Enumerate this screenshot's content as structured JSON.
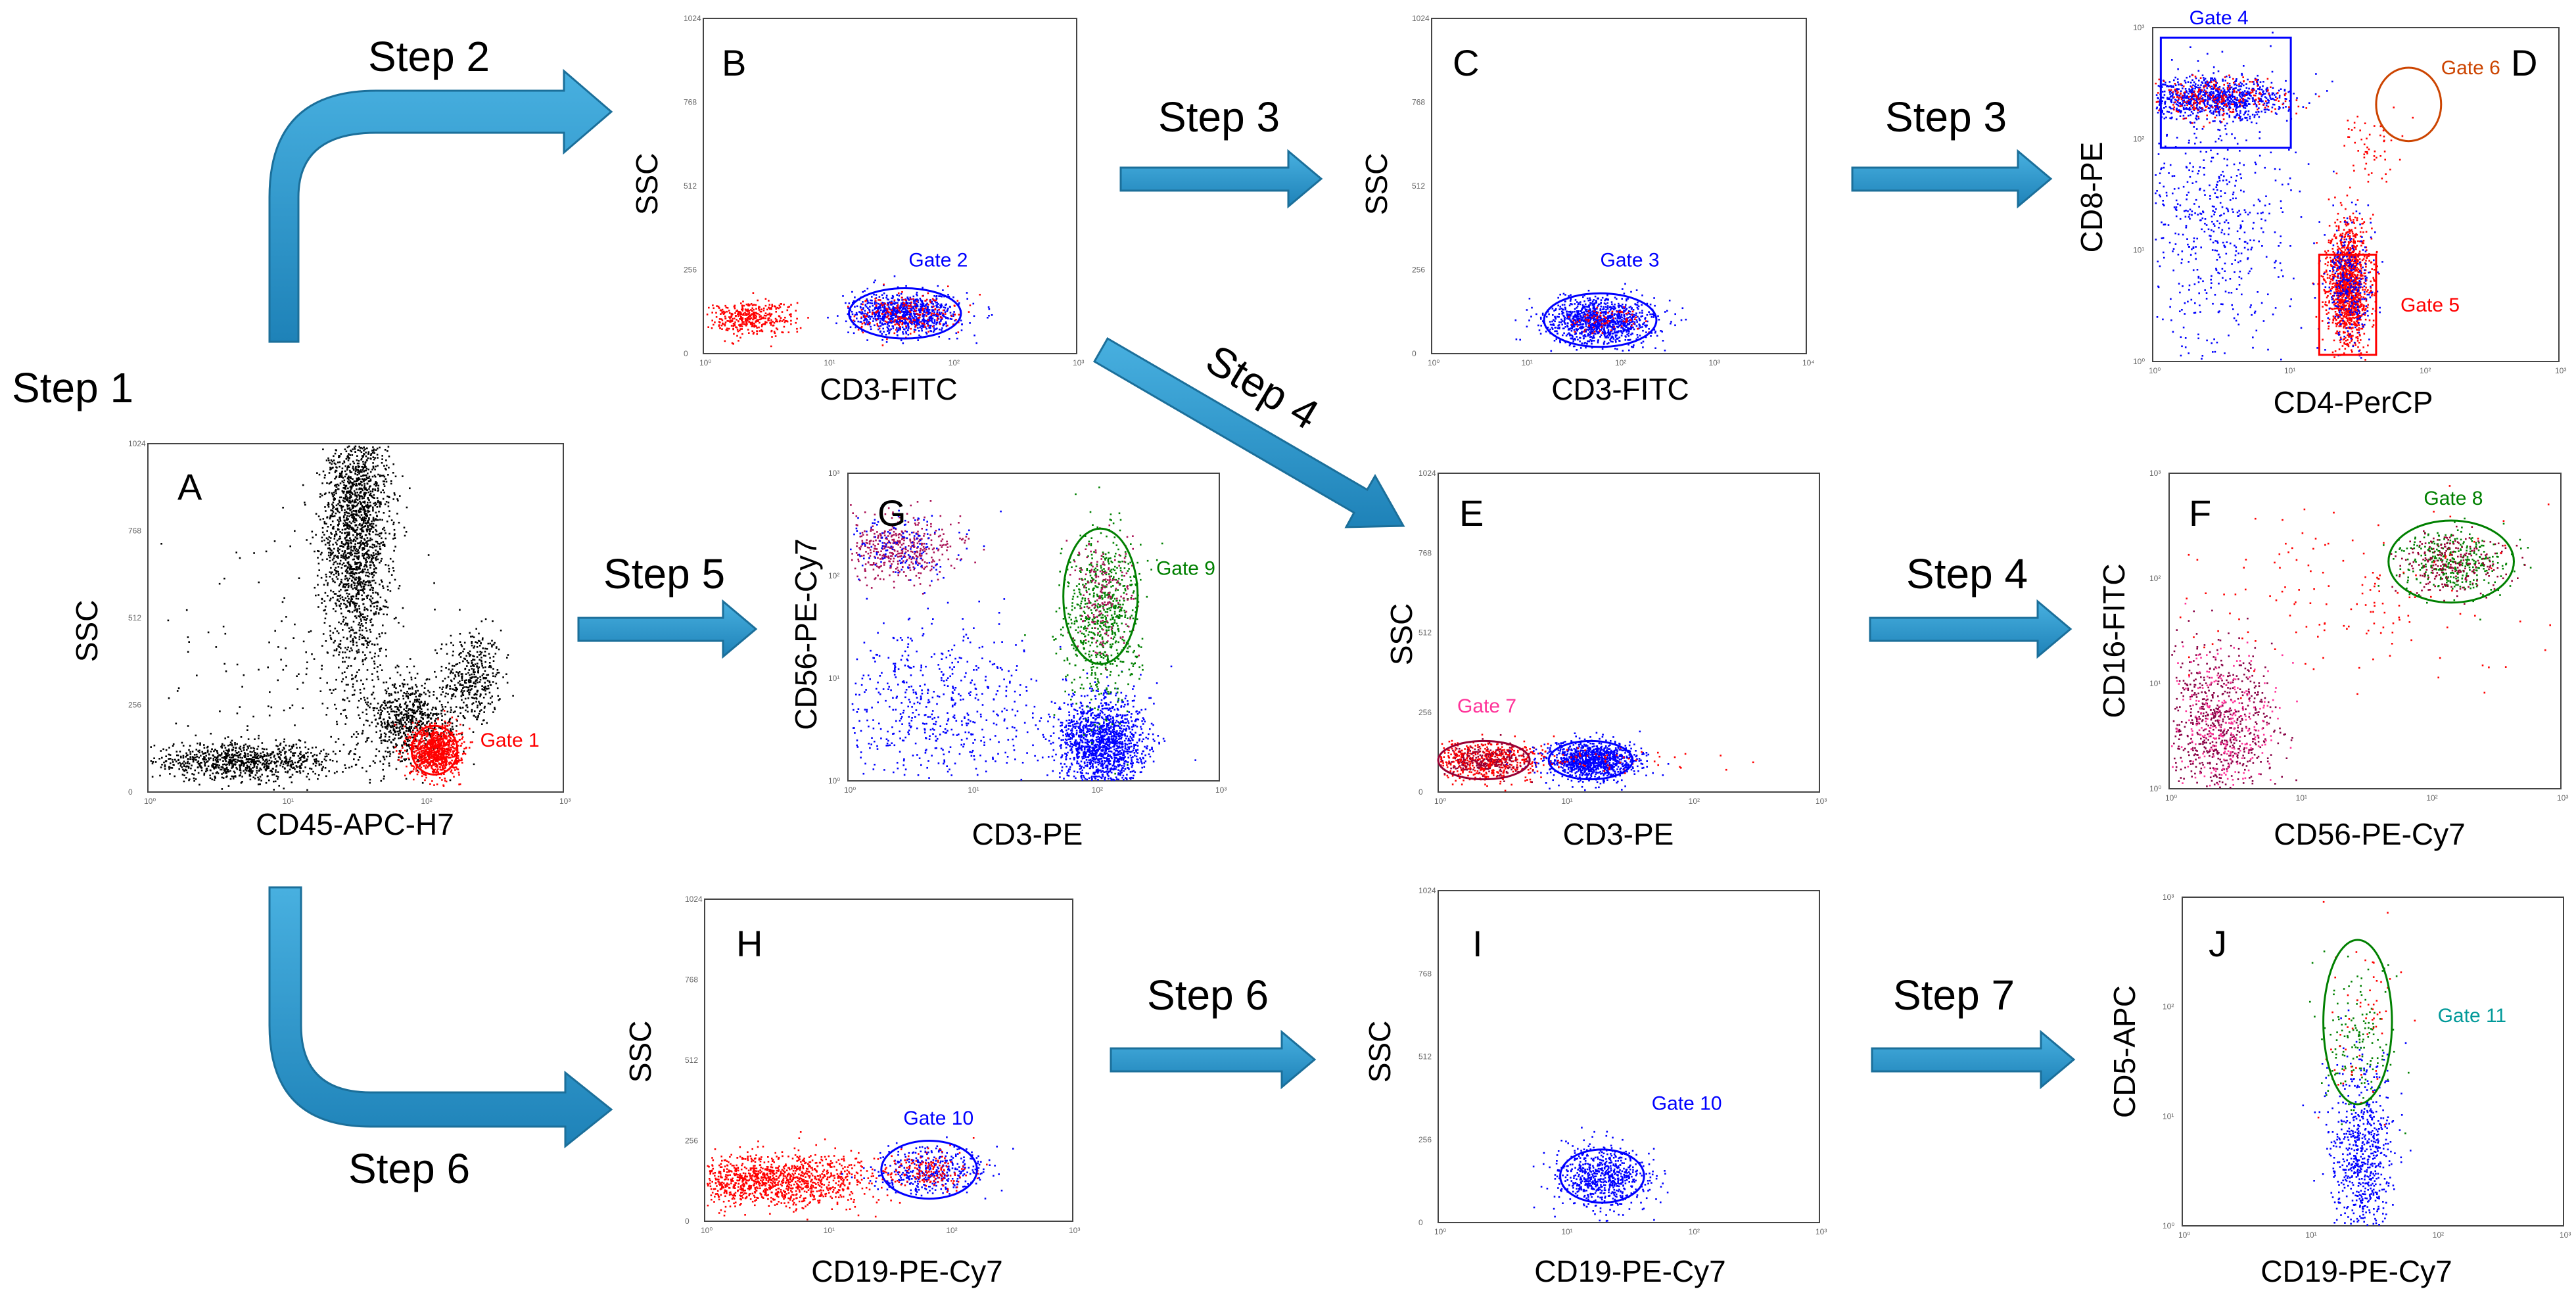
{
  "colors": {
    "arrow": "#2b93c8",
    "arrow_edge": "#1b6f9a",
    "red": "#ff0000",
    "blue": "#0000ff",
    "green": "#008000",
    "pink": "#ff3399",
    "orange": "#cc4400",
    "teal": "#009999",
    "black": "#000000"
  },
  "arrows": [
    {
      "label": "Step 1"
    },
    {
      "label": "Step 2"
    },
    {
      "label": "Step 3"
    },
    {
      "label": "Step 3"
    },
    {
      "label": "Step 4"
    },
    {
      "label": "Step 4"
    },
    {
      "label": "Step 5"
    },
    {
      "label": "Step 6"
    },
    {
      "label": "Step 6"
    },
    {
      "label": "Step 7"
    }
  ],
  "panels": [
    {
      "letter": "A",
      "xlabel": "CD45-APC-H7",
      "ylabel": "SSC",
      "yticks": [
        "1024",
        "768",
        "512",
        "256",
        "0"
      ],
      "xticks": [
        "10⁰",
        "10¹",
        "10²",
        "10³"
      ],
      "gates": [
        {
          "label": "Gate 1",
          "color": "#ff0000"
        }
      ]
    },
    {
      "letter": "B",
      "xlabel": "CD3-FITC",
      "ylabel": "SSC",
      "yticks": [
        "1024",
        "768",
        "512",
        "256",
        "0"
      ],
      "xticks": [
        "10⁰",
        "10¹",
        "10²",
        "10³"
      ],
      "gates": [
        {
          "label": "Gate 2",
          "color": "#0000ff"
        }
      ]
    },
    {
      "letter": "C",
      "xlabel": "CD3-FITC",
      "ylabel": "SSC",
      "yticks": [
        "1024",
        "768",
        "512",
        "256",
        "0"
      ],
      "xticks": [
        "10⁰",
        "10¹",
        "10²",
        "10³",
        "10⁴"
      ],
      "gates": [
        {
          "label": "Gate 3",
          "color": "#0000ff"
        }
      ]
    },
    {
      "letter": "D",
      "xlabel": "CD4-PerCP",
      "ylabel": "CD8-PE",
      "yticks": [
        "10³",
        "10²",
        "10¹",
        "10⁰"
      ],
      "xticks": [
        "10⁰",
        "10¹",
        "10²",
        "10³"
      ],
      "gates": [
        {
          "label": "Gate 4",
          "color": "#0000ff"
        },
        {
          "label": "Gate 5",
          "color": "#ff0000"
        },
        {
          "label": "Gate 6",
          "color": "#cc4400"
        }
      ]
    },
    {
      "letter": "E",
      "xlabel": "CD3-PE",
      "ylabel": "SSC",
      "yticks": [
        "1024",
        "768",
        "512",
        "256",
        "0"
      ],
      "xticks": [
        "10⁰",
        "10¹",
        "10²",
        "10³"
      ],
      "gates": [
        {
          "label": "Gate 7",
          "color": "#ff3399"
        }
      ]
    },
    {
      "letter": "F",
      "xlabel": "CD56-PE-Cy7",
      "ylabel": "CD16-FITC",
      "yticks": [
        "10³",
        "10²",
        "10¹",
        "10⁰"
      ],
      "xticks": [
        "10⁰",
        "10¹",
        "10²",
        "10³"
      ],
      "gates": [
        {
          "label": "Gate 8",
          "color": "#008000"
        }
      ]
    },
    {
      "letter": "G",
      "xlabel": "CD3-PE",
      "ylabel": "CD56-PE-Cy7",
      "yticks": [
        "10³",
        "10²",
        "10¹",
        "10⁰"
      ],
      "xticks": [
        "10⁰",
        "10¹",
        "10²",
        "10³"
      ],
      "gates": [
        {
          "label": "Gate 9",
          "color": "#008000"
        }
      ]
    },
    {
      "letter": "H",
      "xlabel": "CD19-PE-Cy7",
      "ylabel": "SSC",
      "yticks": [
        "1024",
        "768",
        "512",
        "256",
        "0"
      ],
      "xticks": [
        "10⁰",
        "10¹",
        "10²",
        "10³"
      ],
      "gates": [
        {
          "label": "Gate 10",
          "color": "#0000ff"
        }
      ]
    },
    {
      "letter": "I",
      "xlabel": "CD19-PE-Cy7",
      "ylabel": "SSC",
      "yticks": [
        "1024",
        "768",
        "512",
        "256",
        "0"
      ],
      "xticks": [
        "10⁰",
        "10¹",
        "10²",
        "10³"
      ],
      "gates": [
        {
          "label": "Gate 10",
          "color": "#0000ff"
        }
      ]
    },
    {
      "letter": "J",
      "xlabel": "CD19-PE-Cy7",
      "ylabel": "CD5-APC",
      "yticks": [
        "10³",
        "10²",
        "10¹",
        "10⁰"
      ],
      "xticks": [
        "10⁰",
        "10¹",
        "10²",
        "10³"
      ],
      "gates": [
        {
          "label": "Gate 11",
          "color": "#009999"
        }
      ]
    }
  ]
}
